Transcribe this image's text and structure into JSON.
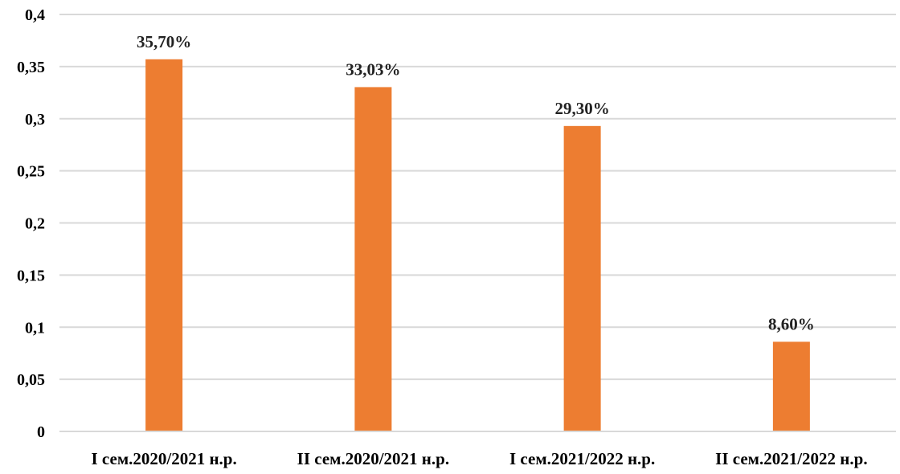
{
  "chart_data": {
    "type": "bar",
    "categories": [
      "I сем.2020/2021 н.р.",
      "II сем.2020/2021 н.р.",
      "I сем.2021/2022 н.р.",
      "II сем.2021/2022 н.р."
    ],
    "values": [
      0.357,
      0.3303,
      0.293,
      0.086
    ],
    "data_labels": [
      "35,70%",
      "33,03%",
      "29,30%",
      "8,60%"
    ],
    "y_ticks": [
      "0",
      "0,05",
      "0,1",
      "0,15",
      "0,2",
      "0,25",
      "0,3",
      "0,35",
      "0,4"
    ],
    "ylim": [
      0,
      0.4
    ],
    "grid": true,
    "legend": "none",
    "title": "",
    "xlabel": "",
    "ylabel": "",
    "bar_color": "#ed7d31",
    "grid_color": "#d9d9d9"
  }
}
